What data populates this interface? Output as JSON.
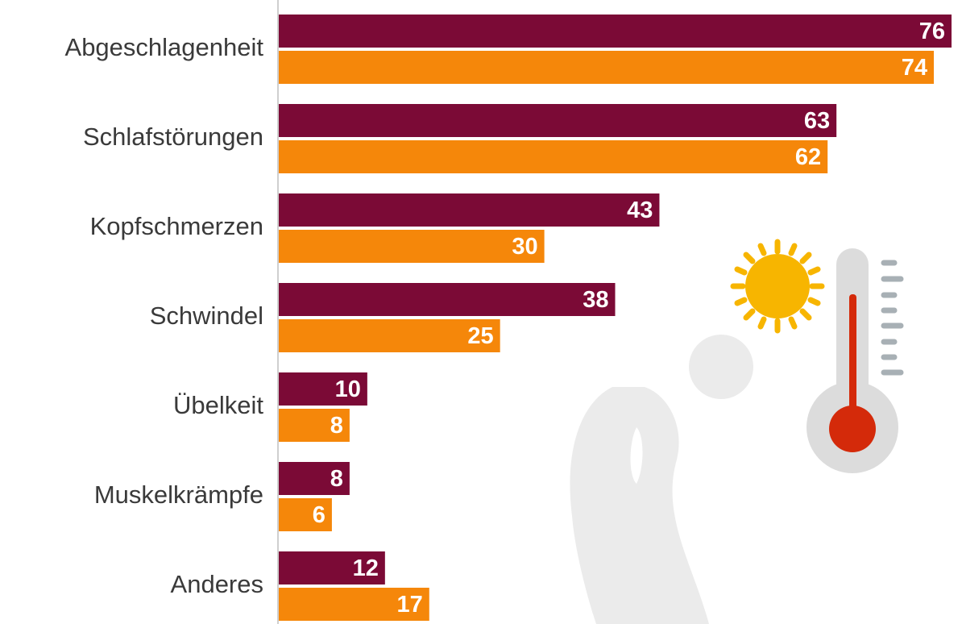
{
  "chart_data": {
    "type": "hbar",
    "categories": [
      "Abgeschlagenheit",
      "Schlafstörungen",
      "Kopfschmerzen",
      "Schwindel",
      "Übelkeit",
      "Muskelkrämpfe",
      "Anderes"
    ],
    "series": [
      {
        "color": "#7b0a36",
        "values": [
          76,
          63,
          43,
          38,
          10,
          8,
          12
        ]
      },
      {
        "color": "#f5870a",
        "values": [
          74,
          62,
          30,
          25,
          8,
          6,
          17
        ]
      }
    ],
    "xlim": [
      0,
      77
    ]
  }
}
